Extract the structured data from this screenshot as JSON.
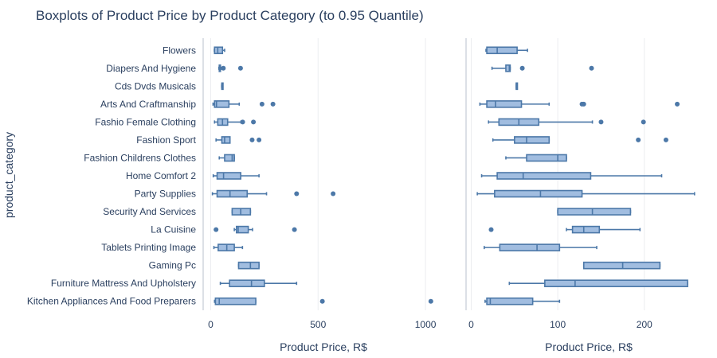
{
  "chart_data": {
    "type": "boxplot",
    "title": "Boxplots of Product Price by Product Category (to 0.95 Quantile)",
    "ylabel": "product_category",
    "colors": {
      "fill": "#a1bde0",
      "line": "#4c78a8",
      "grid": "#ebedf0",
      "axis": "#b9c2cc",
      "text": "#2a3f5f"
    },
    "categories": [
      "Flowers",
      "Diapers And Hygiene",
      "Cds Dvds Musicals",
      "Arts And Craftmanship",
      "Fashio Female Clothing",
      "Fashion Sport",
      "Fashion Childrens Clothes",
      "Home Comfort 2",
      "Party Supplies",
      "Security And Services",
      "La Cuisine",
      "Tablets Printing Image",
      "Gaming Pc",
      "Furniture Mattress And Upholstery",
      "Kitchen Appliances And Food Preparers"
    ],
    "panels": [
      {
        "xlabel": "Product Price, R$",
        "xlim": [
          -35,
          1085
        ],
        "xticks": [
          0,
          500,
          1000
        ],
        "xtick_labels": [
          "0",
          "500",
          "1000"
        ],
        "boxes": [
          {
            "min": 17,
            "q1": 18,
            "median": 33,
            "q3": 55,
            "max": 65,
            "outliers": []
          },
          {
            "min": 38,
            "q1": 40,
            "median": 45,
            "q3": 45,
            "max": 48,
            "outliers": [
              59,
              139
            ]
          },
          {
            "min": 51,
            "q1": 52,
            "median": 52,
            "q3": 52,
            "max": 53,
            "outliers": []
          },
          {
            "min": 11,
            "q1": 18,
            "median": 27,
            "q3": 85,
            "max": 133,
            "outliers": [
              239,
              290
            ]
          },
          {
            "min": 18,
            "q1": 33,
            "median": 55,
            "q3": 79,
            "max": 141,
            "outliers": [
              149,
              199
            ]
          },
          {
            "min": 25,
            "q1": 52,
            "median": 65,
            "q3": 90,
            "max": 90,
            "outliers": [
              193,
              225
            ]
          },
          {
            "min": 40,
            "q1": 65,
            "median": 100,
            "q3": 110,
            "max": 110,
            "outliers": []
          },
          {
            "min": 12,
            "q1": 30,
            "median": 60,
            "q3": 140,
            "max": 225,
            "outliers": []
          },
          {
            "min": 8,
            "q1": 30,
            "median": 90,
            "q3": 170,
            "max": 260,
            "outliers": [
              400,
              570
            ]
          },
          {
            "min": 100,
            "q1": 100,
            "median": 140,
            "q3": 185,
            "max": 185,
            "outliers": []
          },
          {
            "min": 110,
            "q1": 120,
            "median": 128,
            "q3": 175,
            "max": 195,
            "outliers": [
              25,
              390
            ]
          },
          {
            "min": 15,
            "q1": 35,
            "median": 75,
            "q3": 110,
            "max": 148,
            "outliers": []
          },
          {
            "min": 130,
            "q1": 130,
            "median": 185,
            "q3": 225,
            "max": 225,
            "outliers": []
          },
          {
            "min": 45,
            "q1": 88,
            "median": 190,
            "q3": 250,
            "max": 400,
            "outliers": []
          },
          {
            "min": 18,
            "q1": 22,
            "median": 40,
            "q3": 210,
            "max": 210,
            "outliers": [
              520,
              1025
            ]
          }
        ]
      },
      {
        "xlabel": "Product Price, R$",
        "xlim": [
          -6,
          272
        ],
        "xticks": [
          0,
          100,
          200
        ],
        "xtick_labels": [
          "0",
          "100",
          "200"
        ],
        "boxes": [
          {
            "min": 17,
            "q1": 18,
            "median": 30,
            "q3": 53,
            "max": 65,
            "outliers": []
          },
          {
            "min": 24,
            "q1": 40,
            "median": 44,
            "q3": 45,
            "max": 45,
            "outliers": [
              59,
              139
            ]
          },
          {
            "min": 52,
            "q1": 52,
            "median": 52,
            "q3": 52,
            "max": 53,
            "outliers": []
          },
          {
            "min": 10,
            "q1": 18,
            "median": 28,
            "q3": 58,
            "max": 90,
            "outliers": [
              128,
              130,
              238
            ]
          },
          {
            "min": 20,
            "q1": 32,
            "median": 55,
            "q3": 78,
            "max": 140,
            "outliers": [
              150,
              199
            ]
          },
          {
            "min": 25,
            "q1": 50,
            "median": 64,
            "q3": 90,
            "max": 90,
            "outliers": [
              193,
              225
            ]
          },
          {
            "min": 40,
            "q1": 64,
            "median": 100,
            "q3": 110,
            "max": 110,
            "outliers": []
          },
          {
            "min": 12,
            "q1": 30,
            "median": 60,
            "q3": 138,
            "max": 220,
            "outliers": []
          },
          {
            "min": 7,
            "q1": 27,
            "median": 80,
            "q3": 128,
            "max": 258,
            "outliers": []
          },
          {
            "min": 100,
            "q1": 100,
            "median": 140,
            "q3": 184,
            "max": 184,
            "outliers": []
          },
          {
            "min": 110,
            "q1": 117,
            "median": 130,
            "q3": 148,
            "max": 195,
            "outliers": [
              23
            ]
          },
          {
            "min": 15,
            "q1": 33,
            "median": 76,
            "q3": 102,
            "max": 145,
            "outliers": []
          },
          {
            "min": 130,
            "q1": 130,
            "median": 175,
            "q3": 218,
            "max": 218,
            "outliers": []
          },
          {
            "min": 44,
            "q1": 85,
            "median": 120,
            "q3": 250,
            "max": 250,
            "outliers": []
          },
          {
            "min": 16,
            "q1": 18,
            "median": 22,
            "q3": 71,
            "max": 102,
            "outliers": []
          }
        ]
      }
    ]
  }
}
